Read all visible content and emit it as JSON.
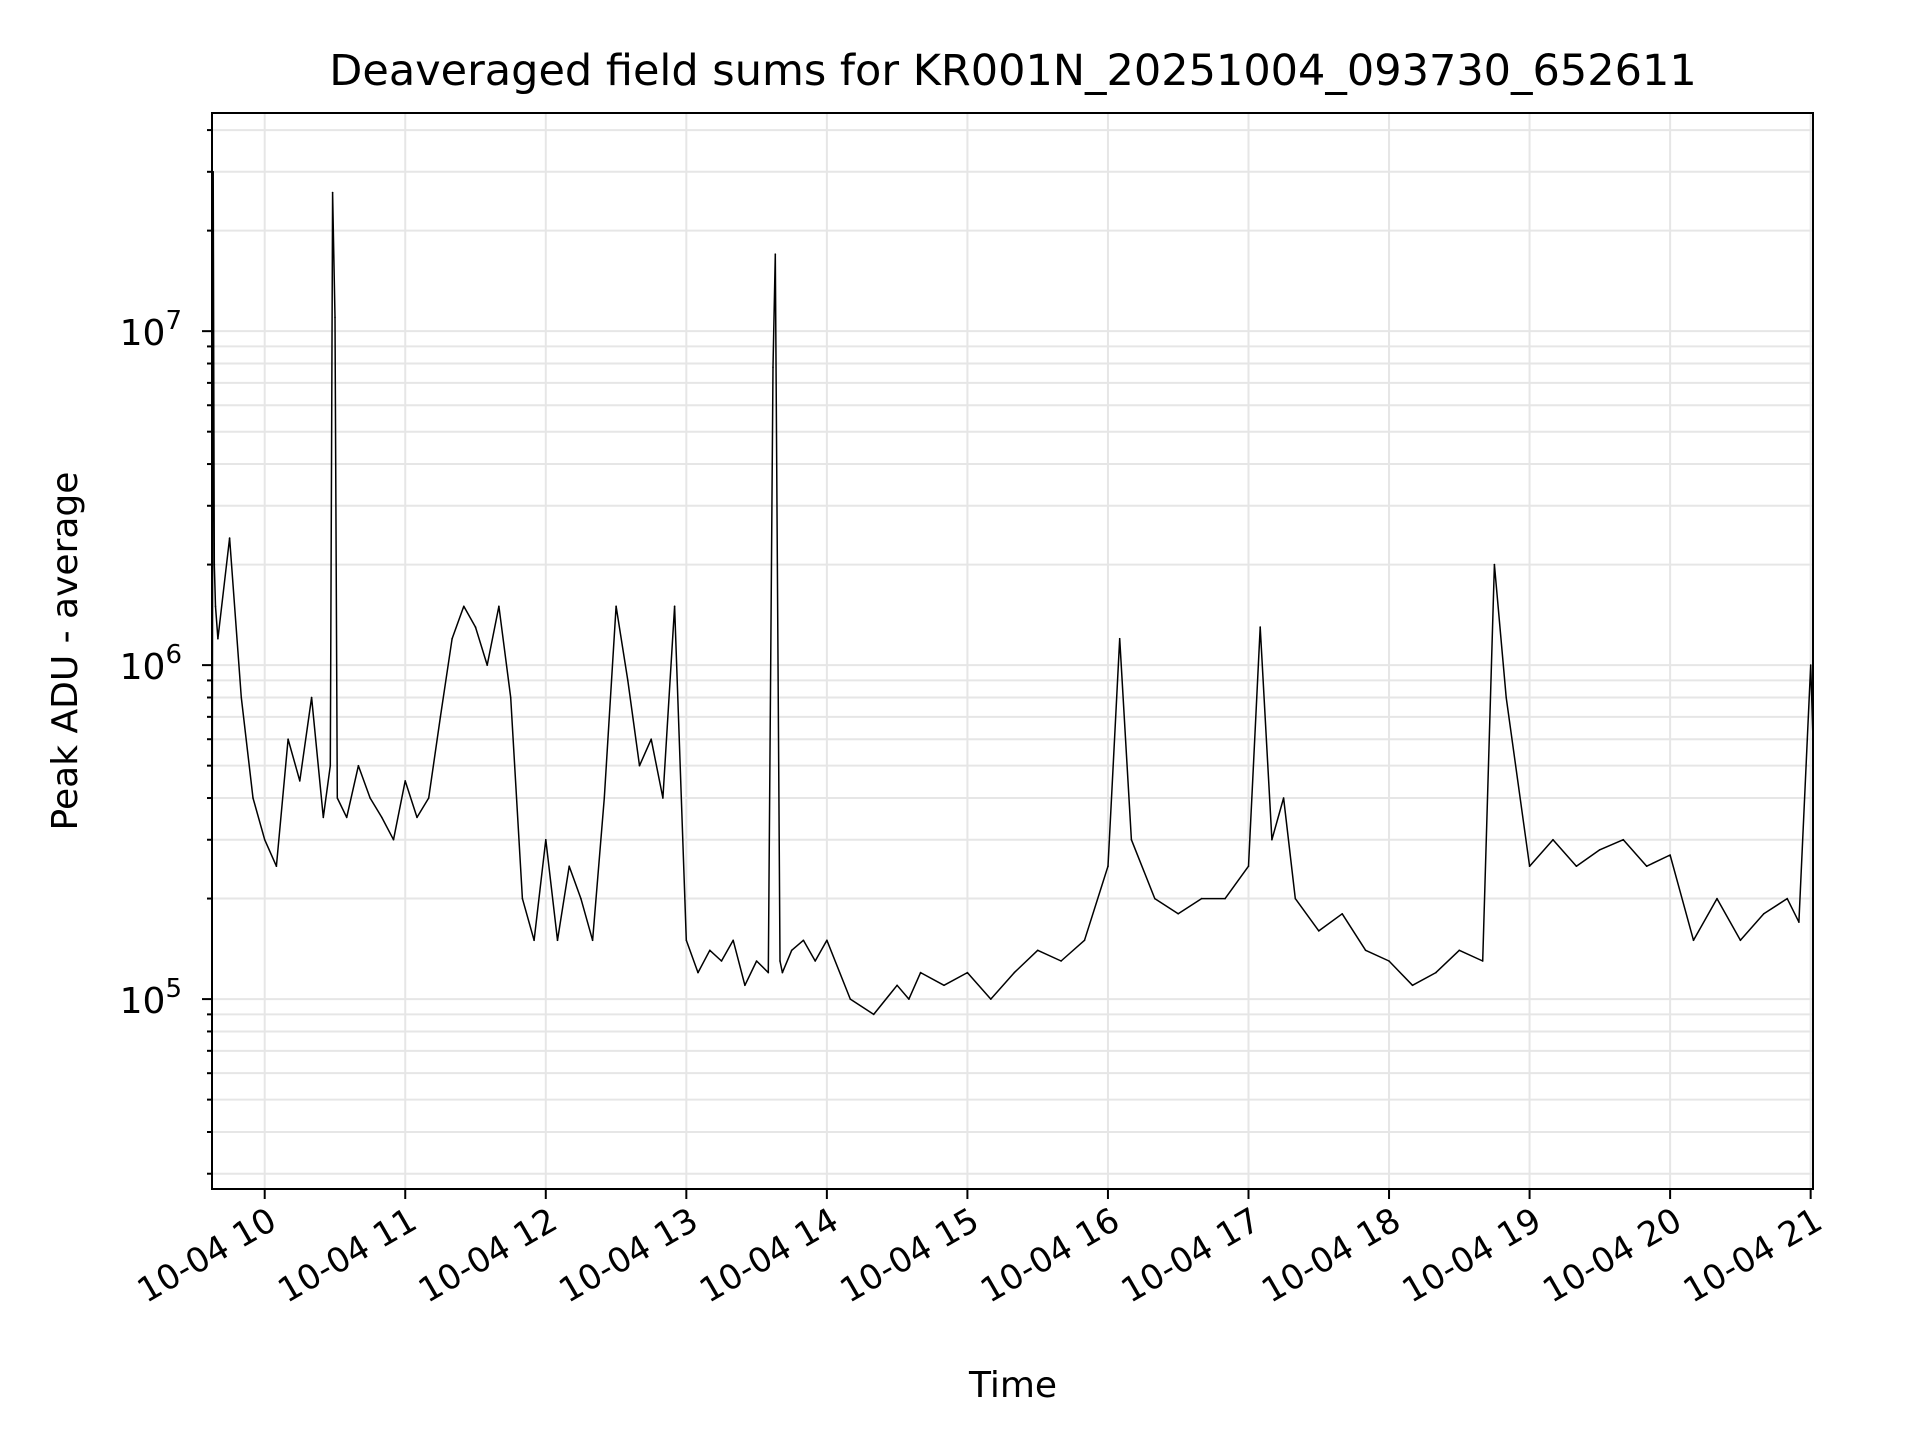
{
  "chart_data": {
    "type": "line",
    "title": "Deaveraged field sums for KR001N_20251004_093730_652611",
    "xlabel": "Time",
    "ylabel": "Peak ADU - average",
    "xscale": "time",
    "yscale": "log",
    "xlim": [
      "2025-10-04 09:37:30",
      "2025-10-04 21:01:00"
    ],
    "ylim": [
      27000,
      45000000
    ],
    "grid": true,
    "line_color": "#000000",
    "grid_color": "#e6e6e6",
    "x_ticks": [
      {
        "time": "2025-10-04 10:00",
        "label": "10-04 10"
      },
      {
        "time": "2025-10-04 11:00",
        "label": "10-04 11"
      },
      {
        "time": "2025-10-04 12:00",
        "label": "10-04 12"
      },
      {
        "time": "2025-10-04 13:00",
        "label": "10-04 13"
      },
      {
        "time": "2025-10-04 14:00",
        "label": "10-04 14"
      },
      {
        "time": "2025-10-04 15:00",
        "label": "10-04 15"
      },
      {
        "time": "2025-10-04 16:00",
        "label": "10-04 16"
      },
      {
        "time": "2025-10-04 17:00",
        "label": "10-04 17"
      },
      {
        "time": "2025-10-04 18:00",
        "label": "10-04 18"
      },
      {
        "time": "2025-10-04 19:00",
        "label": "10-04 19"
      },
      {
        "time": "2025-10-04 20:00",
        "label": "10-04 20"
      },
      {
        "time": "2025-10-04 21:00",
        "label": "10-04 21"
      }
    ],
    "y_ticks": [
      {
        "value": 100000,
        "base": "10",
        "exp": "5"
      },
      {
        "value": 1000000,
        "base": "10",
        "exp": "6"
      },
      {
        "value": 10000000,
        "base": "10",
        "exp": "7"
      }
    ],
    "series": [
      {
        "x": [
          "2025-10-04 09:37:30",
          "2025-10-04 09:38",
          "2025-10-04 09:38:30",
          "2025-10-04 09:39",
          "2025-10-04 09:40",
          "2025-10-04 09:45",
          "2025-10-04 09:50",
          "2025-10-04 09:55",
          "2025-10-04 10:00",
          "2025-10-04 10:05",
          "2025-10-04 10:10",
          "2025-10-04 10:15",
          "2025-10-04 10:20",
          "2025-10-04 10:25",
          "2025-10-04 10:28",
          "2025-10-04 10:29",
          "2025-10-04 10:30",
          "2025-10-04 10:31",
          "2025-10-04 10:35",
          "2025-10-04 10:40",
          "2025-10-04 10:45",
          "2025-10-04 10:50",
          "2025-10-04 10:55",
          "2025-10-04 11:00",
          "2025-10-04 11:05",
          "2025-10-04 11:10",
          "2025-10-04 11:15",
          "2025-10-04 11:20",
          "2025-10-04 11:25",
          "2025-10-04 11:30",
          "2025-10-04 11:35",
          "2025-10-04 11:40",
          "2025-10-04 11:45",
          "2025-10-04 11:50",
          "2025-10-04 11:55",
          "2025-10-04 12:00",
          "2025-10-04 12:05",
          "2025-10-04 12:10",
          "2025-10-04 12:15",
          "2025-10-04 12:20",
          "2025-10-04 12:25",
          "2025-10-04 12:30",
          "2025-10-04 12:35",
          "2025-10-04 12:40",
          "2025-10-04 12:45",
          "2025-10-04 12:50",
          "2025-10-04 12:55",
          "2025-10-04 13:00",
          "2025-10-04 13:05",
          "2025-10-04 13:10",
          "2025-10-04 13:15",
          "2025-10-04 13:20",
          "2025-10-04 13:25",
          "2025-10-04 13:30",
          "2025-10-04 13:35",
          "2025-10-04 13:37",
          "2025-10-04 13:38",
          "2025-10-04 13:40",
          "2025-10-04 13:41",
          "2025-10-04 13:45",
          "2025-10-04 13:50",
          "2025-10-04 13:55",
          "2025-10-04 14:00",
          "2025-10-04 14:10",
          "2025-10-04 14:20",
          "2025-10-04 14:30",
          "2025-10-04 14:35",
          "2025-10-04 14:40",
          "2025-10-04 14:50",
          "2025-10-04 15:00",
          "2025-10-04 15:10",
          "2025-10-04 15:20",
          "2025-10-04 15:30",
          "2025-10-04 15:40",
          "2025-10-04 15:50",
          "2025-10-04 16:00",
          "2025-10-04 16:05",
          "2025-10-04 16:10",
          "2025-10-04 16:20",
          "2025-10-04 16:30",
          "2025-10-04 16:40",
          "2025-10-04 16:50",
          "2025-10-04 17:00",
          "2025-10-04 17:05",
          "2025-10-04 17:10",
          "2025-10-04 17:15",
          "2025-10-04 17:20",
          "2025-10-04 17:30",
          "2025-10-04 17:40",
          "2025-10-04 17:50",
          "2025-10-04 18:00",
          "2025-10-04 18:10",
          "2025-10-04 18:20",
          "2025-10-04 18:30",
          "2025-10-04 18:40",
          "2025-10-04 18:45",
          "2025-10-04 18:50",
          "2025-10-04 19:00",
          "2025-10-04 19:10",
          "2025-10-04 19:20",
          "2025-10-04 19:30",
          "2025-10-04 19:40",
          "2025-10-04 19:50",
          "2025-10-04 20:00",
          "2025-10-04 20:10",
          "2025-10-04 20:20",
          "2025-10-04 20:30",
          "2025-10-04 20:40",
          "2025-10-04 20:50",
          "2025-10-04 20:55",
          "2025-10-04 21:00",
          "2025-10-04 21:01"
        ],
        "y": [
          130000,
          30000000,
          2000000,
          1500000,
          1200000,
          2400000,
          800000,
          400000,
          300000,
          250000,
          600000,
          450000,
          800000,
          350000,
          500000,
          26000000,
          11000000,
          400000,
          350000,
          500000,
          400000,
          350000,
          300000,
          450000,
          350000,
          400000,
          700000,
          1200000,
          1500000,
          1300000,
          1000000,
          1500000,
          800000,
          200000,
          150000,
          300000,
          150000,
          250000,
          200000,
          150000,
          400000,
          1500000,
          900000,
          500000,
          600000,
          400000,
          1500000,
          150000,
          120000,
          140000,
          130000,
          150000,
          110000,
          130000,
          120000,
          7800000,
          17000000,
          130000,
          120000,
          140000,
          150000,
          130000,
          150000,
          100000,
          90000,
          110000,
          100000,
          120000,
          110000,
          120000,
          100000,
          120000,
          140000,
          130000,
          150000,
          250000,
          1200000,
          300000,
          200000,
          180000,
          200000,
          200000,
          250000,
          1300000,
          300000,
          400000,
          200000,
          160000,
          180000,
          140000,
          130000,
          110000,
          120000,
          140000,
          130000,
          2000000,
          800000,
          250000,
          300000,
          250000,
          280000,
          300000,
          250000,
          270000,
          150000,
          200000,
          150000,
          180000,
          200000,
          170000,
          1000000,
          600000
        ]
      }
    ]
  }
}
